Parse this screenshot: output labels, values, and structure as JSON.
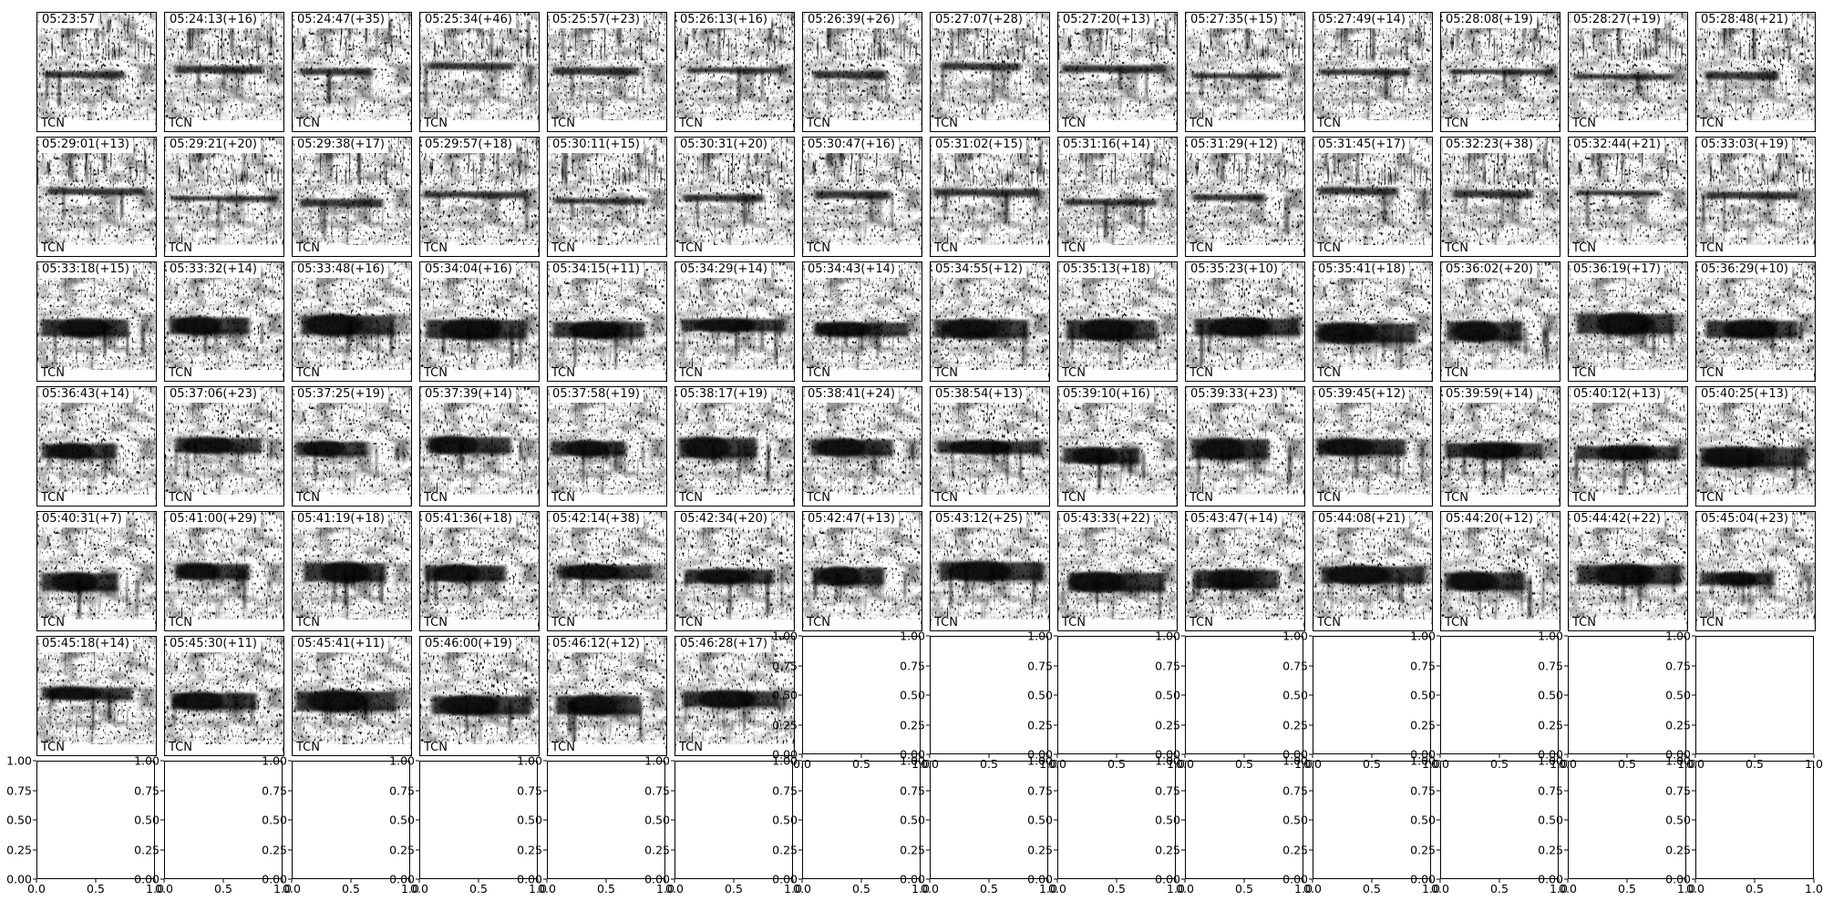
{
  "figure": {
    "kind": "matplotlib-subplot-grid",
    "background": "#ffffff",
    "text_color": "#000000",
    "spine_color": "#000000"
  },
  "grid": {
    "rows": 7,
    "cols": 14,
    "spectrogram_label": "TCN",
    "rows_data": [
      {
        "panels": [
          "05:23:57",
          "05:24:13(+16)",
          "05:24:47(+35)",
          "05:25:34(+46)",
          "05:25:57(+23)",
          "05:26:13(+16)",
          "05:26:39(+26)",
          "05:27:07(+28)",
          "05:27:20(+13)",
          "05:27:35(+15)",
          "05:27:49(+14)",
          "05:28:08(+19)",
          "05:28:27(+19)",
          "05:28:48(+21)"
        ]
      },
      {
        "panels": [
          "05:29:01(+13)",
          "05:29:21(+20)",
          "05:29:38(+17)",
          "05:29:57(+18)",
          "05:30:11(+15)",
          "05:30:31(+20)",
          "05:30:47(+16)",
          "05:31:02(+15)",
          "05:31:16(+14)",
          "05:31:29(+12)",
          "05:31:45(+17)",
          "05:32:23(+38)",
          "05:32:44(+21)",
          "05:33:03(+19)"
        ]
      },
      {
        "panels": [
          "05:33:18(+15)",
          "05:33:32(+14)",
          "05:33:48(+16)",
          "05:34:04(+16)",
          "05:34:15(+11)",
          "05:34:29(+14)",
          "05:34:43(+14)",
          "05:34:55(+12)",
          "05:35:13(+18)",
          "05:35:23(+10)",
          "05:35:41(+18)",
          "05:36:02(+20)",
          "05:36:19(+17)",
          "05:36:29(+10)"
        ]
      },
      {
        "panels": [
          "05:36:43(+14)",
          "05:37:06(+23)",
          "05:37:25(+19)",
          "05:37:39(+14)",
          "05:37:58(+19)",
          "05:38:17(+19)",
          "05:38:41(+24)",
          "05:38:54(+13)",
          "05:39:10(+16)",
          "05:39:33(+23)",
          "05:39:45(+12)",
          "05:39:59(+14)",
          "05:40:12(+13)",
          "05:40:25(+13)"
        ]
      },
      {
        "panels": [
          "05:40:31(+7)",
          "05:41:00(+29)",
          "05:41:19(+18)",
          "05:41:36(+18)",
          "05:42:14(+38)",
          "05:42:34(+20)",
          "05:42:47(+13)",
          "05:43:12(+25)",
          "05:43:33(+22)",
          "05:43:47(+14)",
          "05:44:08(+21)",
          "05:44:20(+12)",
          "05:44:42(+22)",
          "05:45:04(+23)"
        ]
      },
      {
        "panels": [
          "05:45:18(+14)",
          "05:45:30(+11)",
          "05:45:41(+11)",
          "05:46:00(+19)",
          "05:46:12(+12)",
          "05:46:28(+17)"
        ]
      },
      {
        "panels": []
      }
    ]
  },
  "empty_axes": {
    "y_tick_labels": [
      "1.00",
      "0.75",
      "0.50",
      "0.25",
      "0.00"
    ],
    "x_tick_labels": [
      "0.0",
      "0.5",
      "1.0"
    ]
  },
  "chart_data": {
    "type": "heatmap",
    "title": "",
    "description": "Grid of 76 grayscale spectrogram thumbnails (7 rows x 14 cols), each titled with detection time HH:MM:SS and (+duration s), each tagged with model label TCN; trailing 22 grid cells are empty default matplotlib axes with 0-1 tick ranges",
    "panel_label": "TCN",
    "panel_titles": [
      "05:23:57",
      "05:24:13(+16)",
      "05:24:47(+35)",
      "05:25:34(+46)",
      "05:25:57(+23)",
      "05:26:13(+16)",
      "05:26:39(+26)",
      "05:27:07(+28)",
      "05:27:20(+13)",
      "05:27:35(+15)",
      "05:27:49(+14)",
      "05:28:08(+19)",
      "05:28:27(+19)",
      "05:28:48(+21)",
      "05:29:01(+13)",
      "05:29:21(+20)",
      "05:29:38(+17)",
      "05:29:57(+18)",
      "05:30:11(+15)",
      "05:30:31(+20)",
      "05:30:47(+16)",
      "05:31:02(+15)",
      "05:31:16(+14)",
      "05:31:29(+12)",
      "05:31:45(+17)",
      "05:32:23(+38)",
      "05:32:44(+21)",
      "05:33:03(+19)",
      "05:33:18(+15)",
      "05:33:32(+14)",
      "05:33:48(+16)",
      "05:34:04(+16)",
      "05:34:15(+11)",
      "05:34:29(+14)",
      "05:34:43(+14)",
      "05:34:55(+12)",
      "05:35:13(+18)",
      "05:35:23(+10)",
      "05:35:41(+18)",
      "05:36:02(+20)",
      "05:36:19(+17)",
      "05:36:29(+10)",
      "05:36:43(+14)",
      "05:37:06(+23)",
      "05:37:25(+19)",
      "05:37:39(+14)",
      "05:37:58(+19)",
      "05:38:17(+19)",
      "05:38:41(+24)",
      "05:38:54(+13)",
      "05:39:10(+16)",
      "05:39:33(+23)",
      "05:39:45(+12)",
      "05:39:59(+14)",
      "05:40:12(+13)",
      "05:40:25(+13)",
      "05:40:31(+7)",
      "05:41:00(+29)",
      "05:41:19(+18)",
      "05:41:36(+18)",
      "05:42:14(+38)",
      "05:42:34(+20)",
      "05:42:47(+13)",
      "05:43:12(+25)",
      "05:43:33(+22)",
      "05:43:47(+14)",
      "05:44:08(+21)",
      "05:44:20(+12)",
      "05:44:42(+22)",
      "05:45:04(+23)",
      "05:45:18(+14)",
      "05:45:30(+11)",
      "05:45:41(+11)",
      "05:46:00(+19)",
      "05:46:12(+12)",
      "05:46:28(+17)"
    ],
    "empty_axes_y_ticks": [
      1.0,
      0.75,
      0.5,
      0.25,
      0.0
    ],
    "empty_axes_x_ticks": [
      0.0,
      0.5,
      1.0
    ],
    "legend_position": "none",
    "grid_lines": false
  }
}
